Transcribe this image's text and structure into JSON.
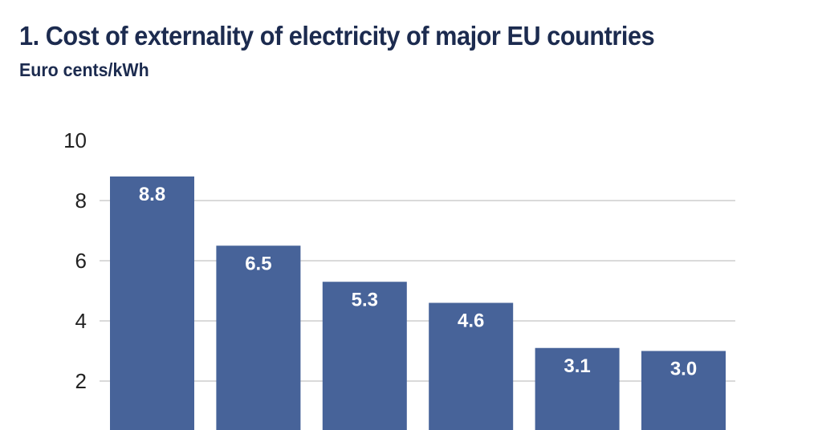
{
  "chart_data": {
    "type": "bar",
    "title": "1. Cost of externality of electricity of major EU countries",
    "subtitle": "Euro cents/kWh",
    "categories": [
      "",
      "",
      "",
      "",
      "",
      ""
    ],
    "values": [
      8.8,
      6.5,
      5.3,
      4.6,
      3.1,
      3.0
    ],
    "data_labels": [
      "8.8",
      "6.5",
      "5.3",
      "4.6",
      "3.1",
      "3.0"
    ],
    "yticks": [
      "2",
      "4",
      "6",
      "8",
      "10"
    ],
    "ylim": [
      0,
      10
    ],
    "grid": true,
    "colors": {
      "bar": "#476399",
      "title": "#1c2b4f",
      "grid": "#b5b5b5"
    }
  }
}
